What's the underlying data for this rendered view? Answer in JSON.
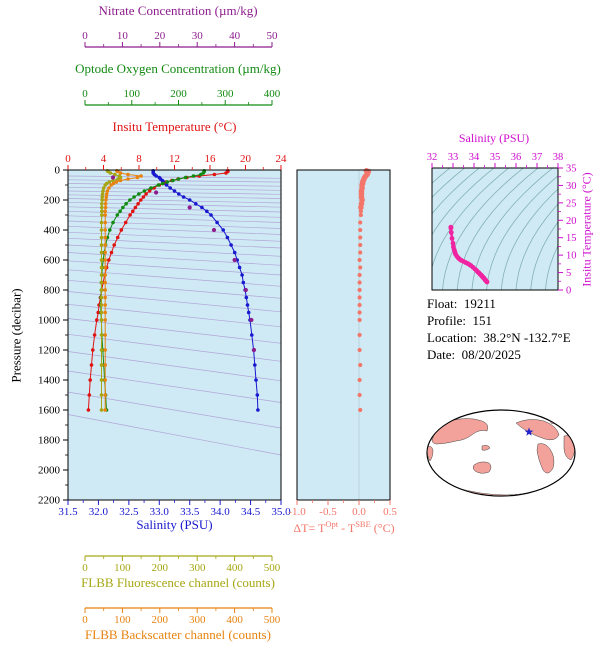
{
  "figure": {
    "axes_titles": {
      "nitrate": "Nitrate Concentration (µm/kg)",
      "oxygen": "Optode Oxygen Concentration (µm/kg)",
      "temperature": "Insitu Temperature (°C)",
      "salinity": "Salinity (PSU)",
      "pressure": "Pressure (decibar)",
      "fluorescence": "FLBB Fluorescence channel (counts)",
      "backscatter": "FLBB Backscatter channel (counts)",
      "ts_salinity": "Salinity (PSU)",
      "ts_temperature": "Insitu Temperature (°C)",
      "delta_t": {
        "prefix": "ΔT= T",
        "sup1": "Opt",
        "mid": " - T",
        "sup2": "SBE",
        "suffix": " (°C)"
      }
    },
    "info": {
      "float_label": "Float:",
      "float_value": "19211",
      "profile_label": "Profile:",
      "profile_value": "151",
      "location_label": "Location:",
      "location_value": "38.2°N -132.7°E",
      "date_label": "Date:",
      "date_value": "08/20/2025"
    },
    "colors": {
      "black": "#000000",
      "panel_bg": "#cfeaf4",
      "contour": "#9a6cc0",
      "isopycnal": "#6fa3a3",
      "nitrate": "#8d1c8d",
      "oxygen": "#128a12",
      "temperature": "#e01212",
      "salinity": "#1818cf",
      "fluorescence": "#a6a614",
      "backscatter": "#e8830f",
      "delta_t": "#f4766a",
      "ts_magenta": "#cf0ccf",
      "ts_dots": "#f023a0",
      "map_land": "#f2a29a",
      "map_star": "#2424cc"
    }
  },
  "chart_data": [
    {
      "id": "main_profile",
      "type": "line",
      "title": "Float multi-parameter depth profiles",
      "y_axis": {
        "label": "Pressure (decibar)",
        "range": [
          0,
          2200
        ],
        "ticks": [
          "0",
          "200",
          "400",
          "600",
          "800",
          "1000",
          "1200",
          "1400",
          "1600",
          "1800",
          "2000",
          "2200"
        ]
      },
      "x_axes": {
        "nitrate": {
          "label": "Nitrate Concentration (µm/kg)",
          "range": [
            0,
            50
          ],
          "ticks": [
            "0",
            "10",
            "20",
            "30",
            "40",
            "50"
          ]
        },
        "oxygen": {
          "label": "Optode Oxygen Concentration (µm/kg)",
          "range": [
            0,
            400
          ],
          "ticks": [
            "0",
            "100",
            "200",
            "300",
            "400"
          ]
        },
        "temperature": {
          "label": "Insitu Temperature (°C)",
          "range": [
            0,
            24
          ],
          "ticks": [
            "0",
            "4",
            "8",
            "12",
            "16",
            "20",
            "24"
          ]
        },
        "salinity": {
          "label": "Salinity (PSU)",
          "range": [
            31.5,
            35.0
          ],
          "ticks": [
            "31.5",
            "32.0",
            "32.5",
            "33.0",
            "33.5",
            "34.0",
            "34.5",
            "35.0"
          ]
        },
        "fluorescence": {
          "label": "FLBB Fluorescence channel (counts)",
          "range": [
            0,
            500
          ],
          "ticks": [
            "0",
            "100",
            "200",
            "300",
            "400",
            "500"
          ]
        },
        "backscatter": {
          "label": "FLBB Backscatter channel (counts)",
          "range": [
            0,
            500
          ],
          "ticks": [
            "0",
            "100",
            "200",
            "300",
            "400",
            "500"
          ]
        }
      },
      "pressure": [
        5,
        10,
        20,
        30,
        40,
        50,
        60,
        70,
        80,
        90,
        100,
        120,
        140,
        160,
        180,
        200,
        225,
        250,
        275,
        300,
        350,
        400,
        450,
        500,
        550,
        600,
        650,
        700,
        750,
        800,
        850,
        900,
        950,
        1000,
        1100,
        1200,
        1300,
        1400,
        1500,
        1600
      ],
      "series": [
        {
          "name": "Salinity",
          "axis": "salinity",
          "color": "#1818cf",
          "values": [
            32.9,
            32.9,
            32.9,
            32.92,
            32.95,
            33.0,
            33.02,
            33.05,
            33.08,
            33.1,
            33.12,
            33.18,
            33.25,
            33.32,
            33.4,
            33.5,
            33.6,
            33.7,
            33.78,
            33.85,
            33.95,
            34.05,
            34.12,
            34.18,
            34.24,
            34.28,
            34.32,
            34.36,
            34.38,
            34.41,
            34.43,
            34.45,
            34.47,
            34.49,
            34.52,
            34.55,
            34.57,
            34.59,
            34.61,
            34.62
          ]
        },
        {
          "name": "Insitu Temperature",
          "axis": "temperature",
          "color": "#e01212",
          "values": [
            18.0,
            18.0,
            17.8,
            16.5,
            14.8,
            13.4,
            12.4,
            11.7,
            11.1,
            10.7,
            10.3,
            9.7,
            9.2,
            8.8,
            8.5,
            8.2,
            7.9,
            7.6,
            7.3,
            7.0,
            6.5,
            6.0,
            5.6,
            5.2,
            4.9,
            4.6,
            4.35,
            4.15,
            3.95,
            3.8,
            3.65,
            3.5,
            3.4,
            3.25,
            3.0,
            2.8,
            2.65,
            2.5,
            2.4,
            2.3
          ]
        },
        {
          "name": "Optode Oxygen",
          "axis": "oxygen",
          "color": "#128a12",
          "values": [
            255,
            255,
            253,
            248,
            232,
            215,
            200,
            188,
            176,
            166,
            157,
            141,
            127,
            115,
            105,
            96,
            88,
            81,
            75,
            69,
            60,
            53,
            48,
            44,
            41,
            39,
            37,
            36,
            35,
            35,
            34,
            34,
            34,
            35,
            36,
            38,
            40,
            42,
            44,
            46
          ]
        },
        {
          "name": "FLBB Fluorescence",
          "axis": "fluorescence",
          "color": "#a6a614",
          "values": [
            60,
            62,
            68,
            80,
            92,
            95,
            88,
            75,
            65,
            58,
            54,
            50,
            48,
            47,
            46,
            46,
            45,
            45,
            45,
            45,
            44,
            44,
            44,
            44,
            44,
            44,
            44,
            44,
            44,
            44,
            44,
            44,
            44,
            44,
            44,
            44,
            44,
            44,
            44,
            44
          ]
        },
        {
          "name": "FLBB Backscatter",
          "axis": "backscatter",
          "color": "#e8830f",
          "values": [
            85,
            88,
            95,
            115,
            150,
            140,
            115,
            95,
            84,
            76,
            70,
            64,
            60,
            58,
            57,
            56,
            55,
            55,
            54,
            54,
            54,
            54,
            54,
            54,
            54,
            54,
            54,
            54,
            54,
            54,
            54,
            54,
            54,
            54,
            54,
            54,
            54,
            54,
            54,
            54
          ]
        },
        {
          "name": "Nitrate",
          "axis": "nitrate",
          "color": "#8d1c8d",
          "markers_only": true,
          "pressure": [
            50,
            150,
            250,
            400,
            600,
            800,
            1000,
            1200
          ],
          "values": [
            7.5,
            19.0,
            28.0,
            34.5,
            40.0,
            43.0,
            44.5,
            45.2
          ]
        }
      ],
      "density_contours": [
        [
          40,
          55
        ],
        [
          65,
          80
        ],
        [
          90,
          108
        ],
        [
          115,
          135
        ],
        [
          140,
          162
        ],
        [
          165,
          190
        ],
        [
          190,
          220
        ],
        [
          215,
          248
        ],
        [
          245,
          280
        ],
        [
          275,
          315
        ],
        [
          305,
          350
        ],
        [
          340,
          390
        ],
        [
          375,
          430
        ],
        [
          415,
          475
        ],
        [
          455,
          520
        ],
        [
          500,
          575
        ],
        [
          550,
          635
        ],
        [
          605,
          700
        ],
        [
          665,
          775
        ],
        [
          735,
          855
        ],
        [
          810,
          945
        ],
        [
          895,
          1045
        ],
        [
          990,
          1155
        ],
        [
          1095,
          1275
        ],
        [
          1210,
          1405
        ],
        [
          1340,
          1550
        ],
        [
          1480,
          1720
        ],
        [
          1630,
          1900
        ]
      ]
    },
    {
      "id": "delta_t",
      "type": "scatter",
      "x_range": [
        -1.0,
        0.5
      ],
      "x_ticks": [
        "-1.0",
        "-0.5",
        "0.0",
        "0.5"
      ],
      "pressure": [
        5,
        10,
        20,
        30,
        40,
        50,
        60,
        70,
        80,
        90,
        100,
        120,
        140,
        160,
        180,
        200,
        225,
        250,
        275,
        300,
        350,
        400,
        450,
        500,
        550,
        600,
        650,
        700,
        750,
        800,
        850,
        900,
        950,
        1000,
        1100,
        1200,
        1300,
        1400,
        1500,
        1600
      ],
      "values": [
        0.12,
        0.15,
        0.14,
        0.13,
        0.11,
        0.09,
        0.08,
        0.07,
        0.06,
        0.06,
        0.05,
        0.05,
        0.04,
        0.04,
        0.04,
        0.05,
        0.04,
        0.03,
        0.03,
        0.03,
        0.02,
        0.02,
        0.02,
        0.02,
        0.02,
        0.01,
        0.02,
        0.01,
        0.01,
        0.01,
        0.01,
        0.01,
        0.01,
        0.01,
        0.01,
        0.01,
        0.02,
        0.01,
        0.01,
        0.02
      ],
      "color": "#f4766a"
    },
    {
      "id": "ts_diagram",
      "type": "scatter",
      "x_range": [
        32,
        38
      ],
      "x_ticks": [
        "32",
        "33",
        "34",
        "35",
        "36",
        "37",
        "38"
      ],
      "y_range": [
        0,
        35
      ],
      "y_ticks": [
        "0",
        "5",
        "10",
        "15",
        "20",
        "25",
        "30",
        "35"
      ],
      "salinity": [
        32.9,
        32.9,
        32.9,
        32.92,
        32.95,
        33.0,
        33.02,
        33.05,
        33.08,
        33.1,
        33.12,
        33.18,
        33.25,
        33.32,
        33.4,
        33.5,
        33.6,
        33.7,
        33.78,
        33.85,
        33.95,
        34.05,
        34.12,
        34.18,
        34.24,
        34.28,
        34.32,
        34.36,
        34.38,
        34.41,
        34.43,
        34.45,
        34.47,
        34.49,
        34.52,
        34.55,
        34.57,
        34.59,
        34.61,
        34.62
      ],
      "temperature": [
        18.0,
        18.0,
        17.8,
        16.5,
        14.8,
        13.4,
        12.4,
        11.7,
        11.1,
        10.7,
        10.3,
        9.7,
        9.2,
        8.8,
        8.5,
        8.2,
        7.9,
        7.6,
        7.3,
        7.0,
        6.5,
        6.0,
        5.6,
        5.2,
        4.9,
        4.6,
        4.35,
        4.15,
        3.95,
        3.8,
        3.65,
        3.5,
        3.4,
        3.25,
        3.0,
        2.8,
        2.65,
        2.5,
        2.4,
        2.3
      ],
      "color": "#f023a0",
      "isopycnals": {
        "s0_start": 29.0,
        "s0_step": 0.7,
        "count": 13
      }
    },
    {
      "id": "world_map",
      "type": "map",
      "marker": {
        "symbol": "star",
        "lat": 38.2,
        "lon": -132.7,
        "color": "#2424cc"
      }
    }
  ]
}
